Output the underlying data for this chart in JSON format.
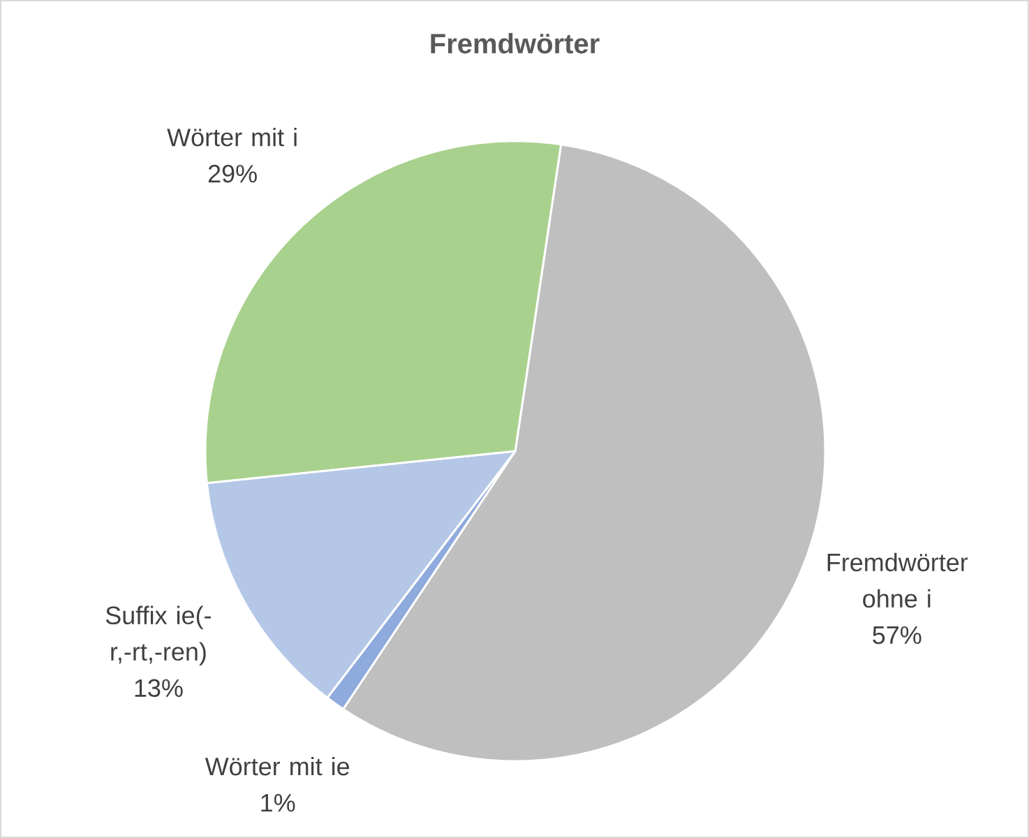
{
  "chart_data": {
    "type": "pie",
    "title": "Fremdwörter",
    "categories": [
      "Fremdwörter ohne i",
      "Wörter mit ie",
      "Suffix ie(-r,-rt,-ren)",
      "Wörter mit i"
    ],
    "values": [
      57,
      1,
      13,
      29
    ],
    "colors": [
      "#bfbfbf",
      "#8faadc",
      "#b4c7e7",
      "#a9d18e"
    ],
    "value_labels": [
      "57%",
      "1%",
      "13%",
      "29%"
    ]
  }
}
